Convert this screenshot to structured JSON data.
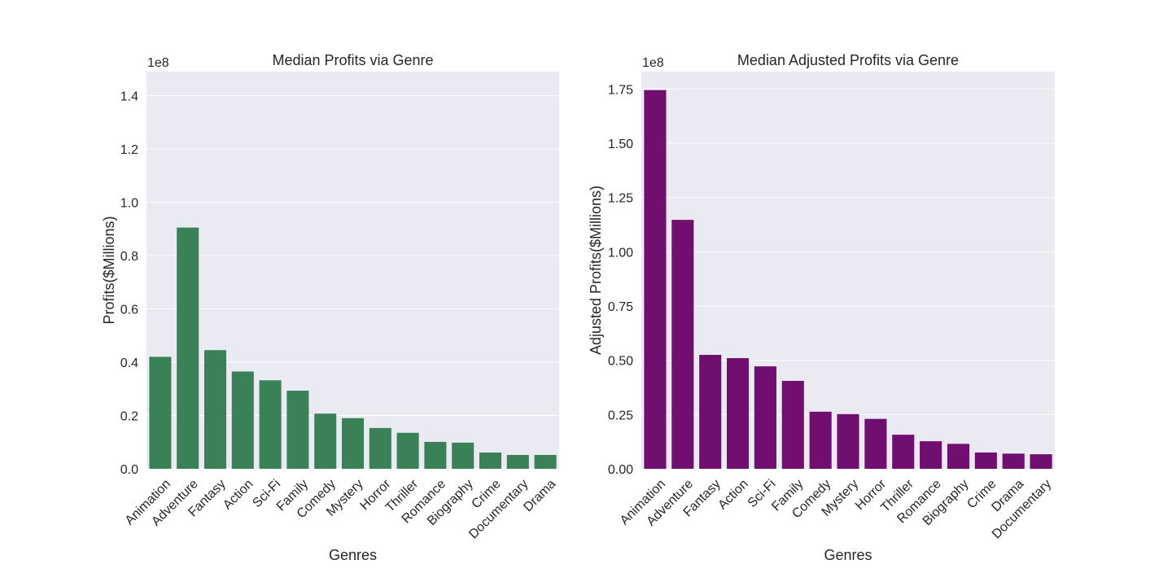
{
  "chart_data": [
    {
      "type": "bar",
      "title": "Median Profits via Genre",
      "xlabel": "Genres",
      "ylabel": "Profits($Millions)",
      "scale_label": "1e8",
      "color": "#3a8158",
      "categories": [
        "Animation",
        "Adventure",
        "Fantasy",
        "Action",
        "Sci-Fi",
        "Family",
        "Comedy",
        "Mystery",
        "Horror",
        "Thriller",
        "Romance",
        "Biography",
        "Crime",
        "Documentary",
        "Drama"
      ],
      "values": [
        0.42,
        0.905,
        0.445,
        0.365,
        0.332,
        0.293,
        0.207,
        0.19,
        0.153,
        0.135,
        0.101,
        0.098,
        0.061,
        0.052,
        0.052
      ],
      "ylim": [
        0,
        1.49
      ],
      "yticks": [
        {
          "value": 0,
          "label": "0.0"
        },
        {
          "value": 0.2,
          "label": "0.2"
        },
        {
          "value": 0.4,
          "label": "0.4"
        },
        {
          "value": 0.6,
          "label": "0.6"
        },
        {
          "value": 0.8,
          "label": "0.8"
        },
        {
          "value": 1.0,
          "label": "1.0"
        },
        {
          "value": 1.2,
          "label": "1.2"
        },
        {
          "value": 1.4,
          "label": "1.4"
        }
      ],
      "grid": true
    },
    {
      "type": "bar",
      "title": "Median Adjusted Profits via Genre",
      "xlabel": "Genres",
      "ylabel": "Adjusted Profits($Millions)",
      "scale_label": "1e8",
      "color": "#700f6f",
      "categories": [
        "Animation",
        "Adventure",
        "Fantasy",
        "Action",
        "Sci-Fi",
        "Family",
        "Comedy",
        "Mystery",
        "Horror",
        "Thriller",
        "Romance",
        "Biography",
        "Crime",
        "Drama",
        "Documentary"
      ],
      "values": [
        1.745,
        1.147,
        0.525,
        0.51,
        0.472,
        0.405,
        0.263,
        0.252,
        0.23,
        0.157,
        0.127,
        0.115,
        0.075,
        0.07,
        0.067
      ],
      "ylim": [
        0,
        1.83
      ],
      "yticks": [
        {
          "value": 0,
          "label": "0.00"
        },
        {
          "value": 0.25,
          "label": "0.25"
        },
        {
          "value": 0.5,
          "label": "0.50"
        },
        {
          "value": 0.75,
          "label": "0.75"
        },
        {
          "value": 1.0,
          "label": "1.00"
        },
        {
          "value": 1.25,
          "label": "1.25"
        },
        {
          "value": 1.5,
          "label": "1.50"
        },
        {
          "value": 1.75,
          "label": "1.75"
        }
      ],
      "grid": true
    }
  ]
}
